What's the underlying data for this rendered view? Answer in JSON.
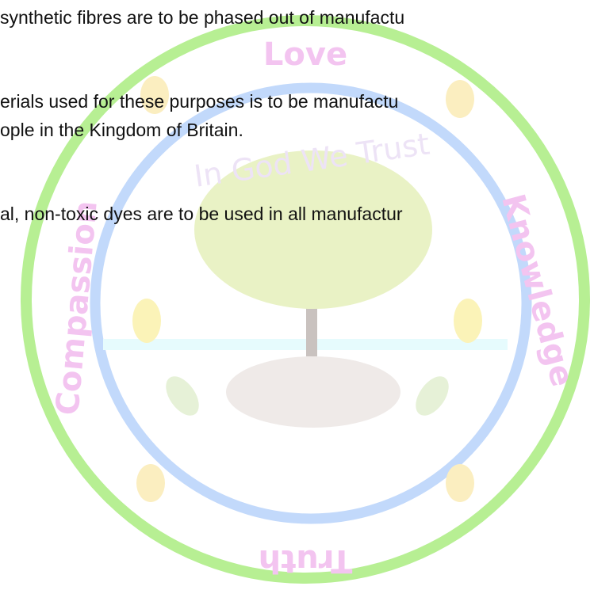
{
  "document": {
    "lines": [
      "synthetic fibres are to be phased out of manufactu",
      "erials used for these purposes is to be manufactu",
      "ople in the Kingdom of Britain.",
      "al, non-toxic dyes are to be used in all manufactur"
    ],
    "emblem": {
      "top": "Love",
      "left": "Compassion",
      "right": "Knowledge",
      "bottom": "Truth",
      "motto": "In God We Trust"
    }
  }
}
